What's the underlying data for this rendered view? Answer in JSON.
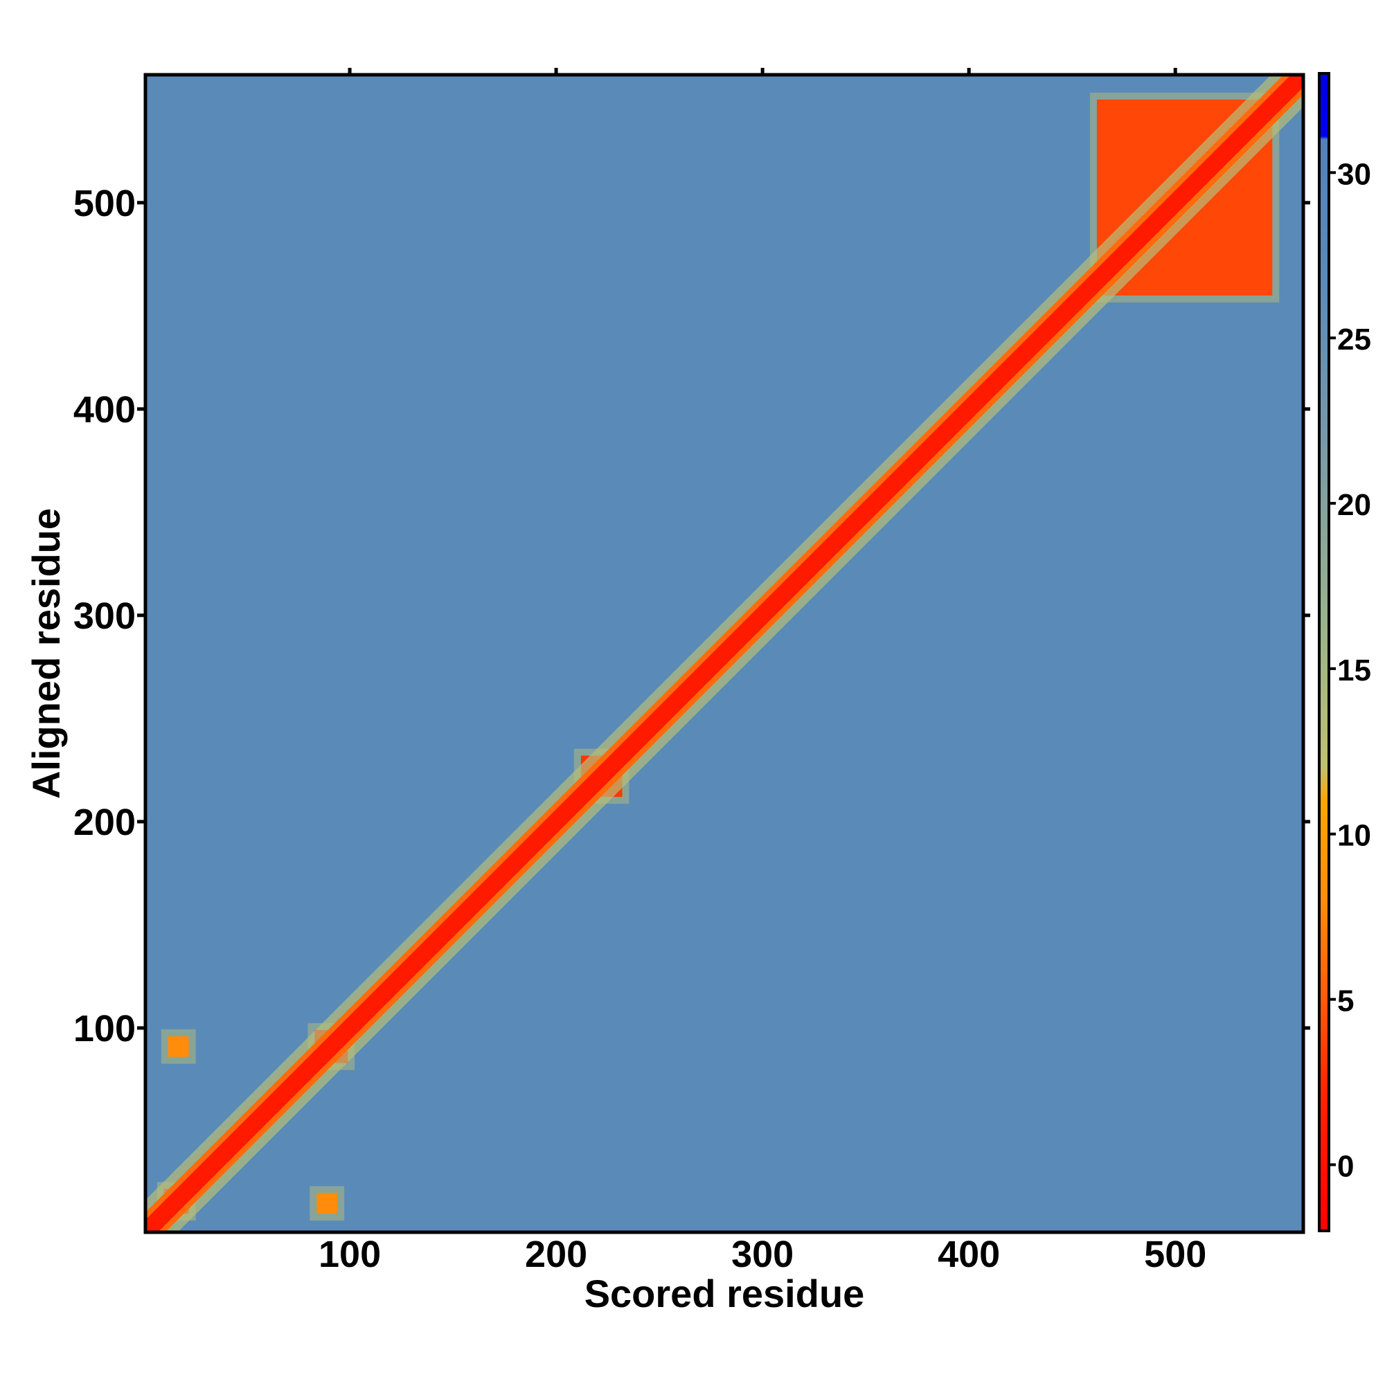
{
  "chart_data": {
    "type": "heatmap",
    "title": "",
    "xlabel": "Scored residue",
    "ylabel": "Aligned residue",
    "n_residues": 562,
    "xlim": [
      1,
      562
    ],
    "ylim": [
      1,
      562
    ],
    "x_ticks": [
      100,
      200,
      300,
      400,
      500
    ],
    "y_ticks": [
      100,
      200,
      300,
      400,
      500
    ],
    "x_tick_labels": [
      "100",
      "200",
      "300",
      "400",
      "500"
    ],
    "y_tick_labels": [
      "100",
      "200",
      "300",
      "400",
      "500"
    ],
    "background_value": 27,
    "diagonal": {
      "value": 1,
      "half_width": 6
    },
    "blocks": [
      {
        "x": [
          462,
          547
        ],
        "y": [
          455,
          550
        ],
        "value": 4
      },
      {
        "x": [
          10,
          22
        ],
        "y": [
          10,
          22
        ],
        "value": 2
      },
      {
        "x": [
          83,
          99
        ],
        "y": [
          83,
          99
        ],
        "value": 2
      },
      {
        "x": [
          212,
          232
        ],
        "y": [
          212,
          232
        ],
        "value": 3
      },
      {
        "x": [
          12,
          22
        ],
        "y": [
          86,
          96
        ],
        "value": 8
      },
      {
        "x": [
          84,
          94
        ],
        "y": [
          10,
          20
        ],
        "value": 8
      }
    ],
    "colorbar": {
      "min": -2,
      "max": 33,
      "ticks": [
        0,
        5,
        10,
        15,
        20,
        25,
        30
      ],
      "tick_labels": [
        "0",
        "5",
        "10",
        "15",
        "20",
        "25",
        "30"
      ],
      "stops": [
        {
          "value": -2,
          "color": "#ff0000"
        },
        {
          "value": 2,
          "color": "#ff2200"
        },
        {
          "value": 5,
          "color": "#ff5a0a"
        },
        {
          "value": 8,
          "color": "#ff8c0a"
        },
        {
          "value": 11,
          "color": "#ffa500"
        },
        {
          "value": 12,
          "color": "#c0c070"
        },
        {
          "value": 16,
          "color": "#9cb48a"
        },
        {
          "value": 22,
          "color": "#7898a8"
        },
        {
          "value": 27,
          "color": "#5a8ab8"
        },
        {
          "value": 31,
          "color": "#5580bb"
        },
        {
          "value": 31.1,
          "color": "#0000ee"
        },
        {
          "value": 33,
          "color": "#0000dd"
        }
      ]
    }
  }
}
